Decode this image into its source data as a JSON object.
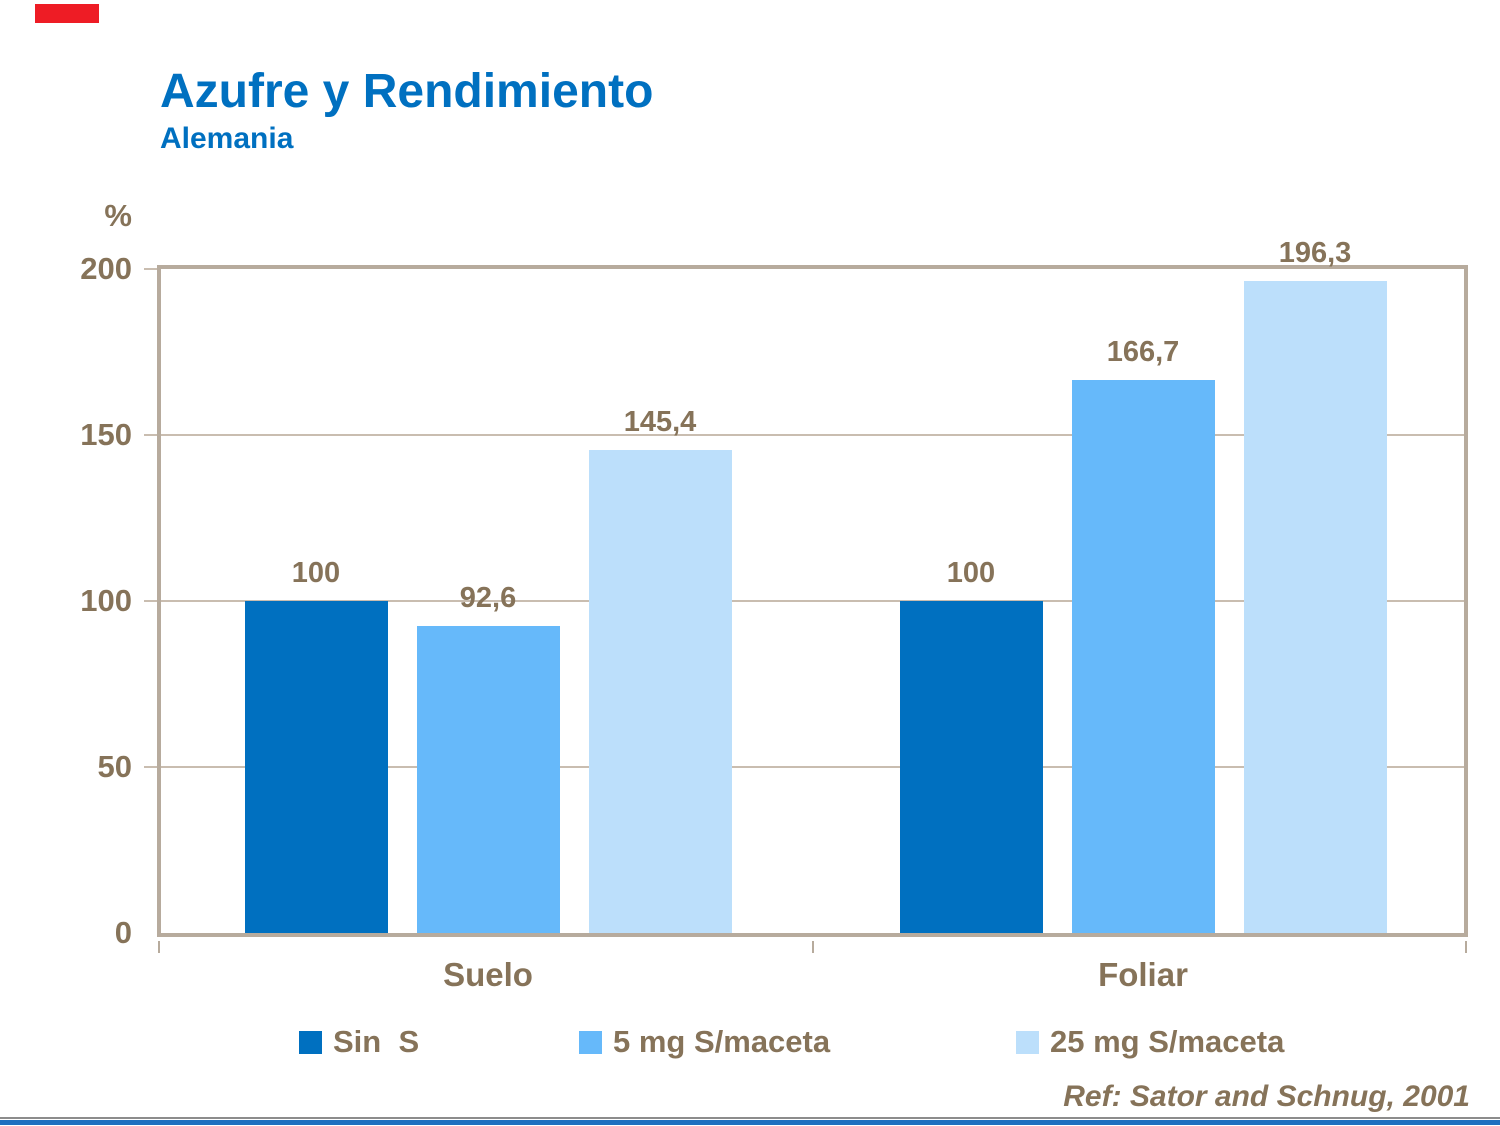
{
  "chart_data": {
    "type": "bar",
    "title": "Azufre y Rendimiento",
    "subtitle": "Alemania",
    "ylabel": "%",
    "ylim": [
      0,
      200
    ],
    "yticks": [
      0,
      50,
      100,
      150,
      200
    ],
    "grid": true,
    "legend_position": "bottom",
    "categories": [
      "Suelo",
      "Foliar"
    ],
    "series": [
      {
        "name": "Sin  S",
        "color": "#0070C0",
        "values": [
          100,
          100
        ],
        "labels": [
          "100",
          "100"
        ]
      },
      {
        "name": "5 mg S/maceta",
        "color": "#66B9FA",
        "values": [
          92.6,
          166.7
        ],
        "labels": [
          "92,6",
          "166,7"
        ]
      },
      {
        "name": "25 mg S/maceta",
        "color": "#BCDFFB",
        "values": [
          145.4,
          196.3
        ],
        "labels": [
          "145,4",
          "196,3"
        ]
      }
    ],
    "reference": "Ref: Sator and Schnug, 2001"
  },
  "colors": {
    "title_blue": "#0070C0",
    "text_taupe": "#867359",
    "frame_border": "#B7AB9D",
    "gridline": "#C9BDB0",
    "accent_red": "#EE1C25",
    "bottom_line_blue": "#1F6FBF"
  }
}
